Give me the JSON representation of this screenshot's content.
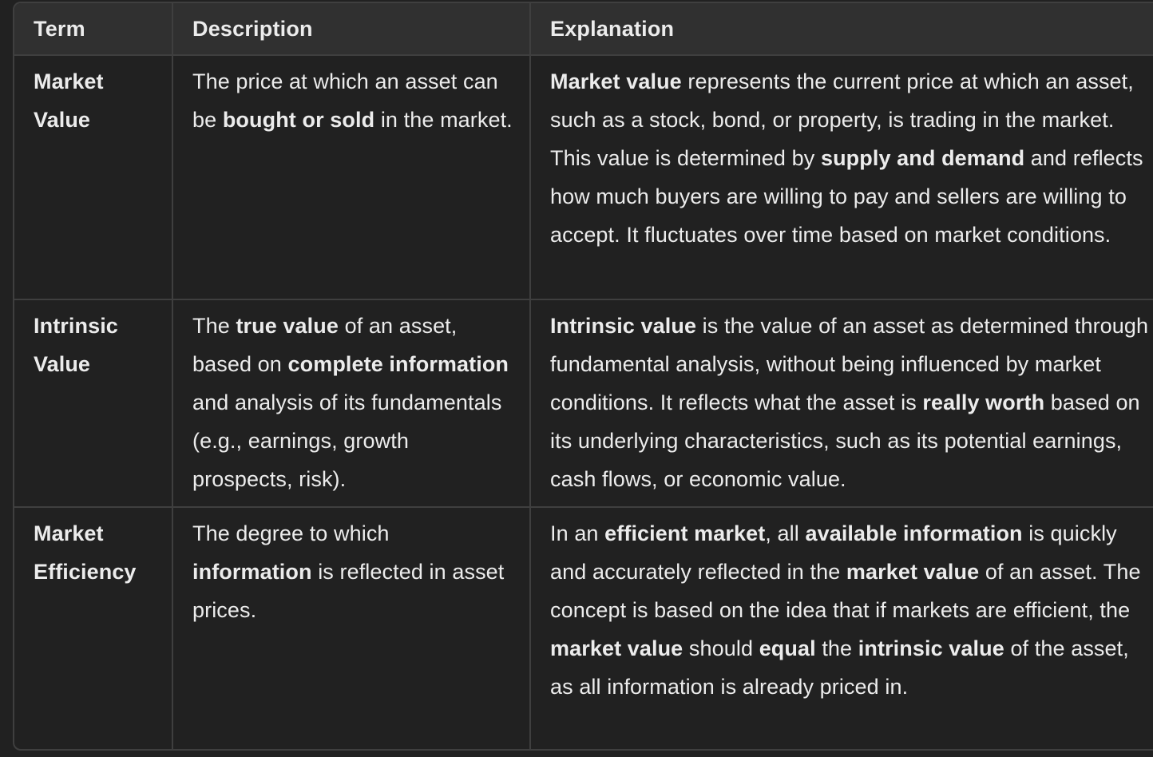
{
  "table": {
    "headers": [
      "Term",
      "Description",
      "Explanation"
    ],
    "rows": [
      {
        "term": "Market Value",
        "description": [
          {
            "t": "The price at which an asset can be "
          },
          {
            "t": "bought or sold",
            "b": true
          },
          {
            "t": " in the market."
          }
        ],
        "explanation": [
          {
            "t": "Market value",
            "b": true
          },
          {
            "t": " represents the current price at which an asset, such as a stock, bond, or property, is trading in the market. This value is determined by "
          },
          {
            "t": "supply and demand",
            "b": true
          },
          {
            "t": " and reflects how much buyers are willing to pay and sellers are willing to accept. It fluctuates over time based on market conditions."
          }
        ]
      },
      {
        "term": "Intrinsic Value",
        "description": [
          {
            "t": "The "
          },
          {
            "t": "true value",
            "b": true
          },
          {
            "t": " of an asset, based on "
          },
          {
            "t": "complete information",
            "b": true
          },
          {
            "t": " and analysis of its fundamentals (e.g., earnings, growth prospects, risk)."
          }
        ],
        "explanation": [
          {
            "t": "Intrinsic value",
            "b": true
          },
          {
            "t": " is the value of an asset as determined through fundamental analysis, without being influenced by market conditions. It reflects what the asset is "
          },
          {
            "t": "really worth",
            "b": true
          },
          {
            "t": " based on its underlying characteristics, such as its potential earnings, cash flows, or economic value."
          }
        ]
      },
      {
        "term": "Market Efficiency",
        "description": [
          {
            "t": "The degree to which "
          },
          {
            "t": "information",
            "b": true
          },
          {
            "t": " is reflected in asset prices."
          }
        ],
        "explanation": [
          {
            "t": "In an "
          },
          {
            "t": "efficient market",
            "b": true
          },
          {
            "t": ", all "
          },
          {
            "t": "available information",
            "b": true
          },
          {
            "t": " is quickly and accurately reflected in the "
          },
          {
            "t": "market value",
            "b": true
          },
          {
            "t": " of an asset. The concept is based on the idea that if markets are efficient, the "
          },
          {
            "t": "market value",
            "b": true
          },
          {
            "t": " should "
          },
          {
            "t": "equal",
            "b": true
          },
          {
            "t": " the "
          },
          {
            "t": "intrinsic value",
            "b": true
          },
          {
            "t": " of the asset, as all information is already priced in."
          }
        ]
      }
    ]
  }
}
